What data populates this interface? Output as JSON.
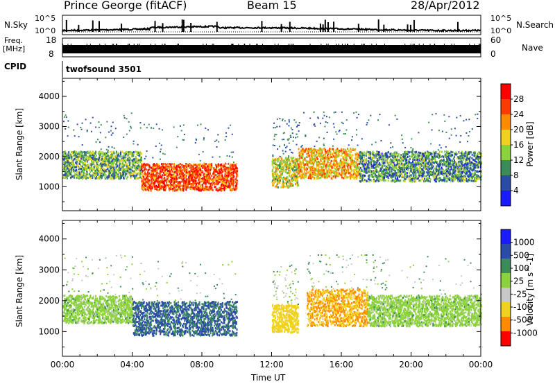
{
  "header": {
    "station": "Prince George (fitACF)",
    "beam": "Beam 15",
    "date": "28/Apr/2012"
  },
  "strip_labels": {
    "nsky": "N.Sky",
    "nsky_top": "10^5",
    "nsky_bottom": "10^0",
    "nsearch": "N.Search",
    "nsearch_top": "10^5",
    "nsearch_bottom": "10^0",
    "freq_line1": "Freq.",
    "freq_line2": "[MHz]",
    "freq_top": "18",
    "freq_bottom": "8",
    "nave": "Nave",
    "nave_top": "60",
    "nave_bottom": "0",
    "cpid": "CPID",
    "cpid_value": "twofsound 3501"
  },
  "chart_data": [
    {
      "type": "heatmap",
      "panel": "power",
      "ylabel": "Slant Range [km]",
      "ylim": [
        200,
        4600
      ],
      "yticks": [
        "1000",
        "2000",
        "3000",
        "4000"
      ],
      "colorbar_label": "Power [dB]",
      "colorbar_ticks": [
        "4",
        "8",
        "12",
        "16",
        "20",
        "24",
        "28"
      ],
      "colorbar_colors": [
        "#1a1aff",
        "#2a4ca8",
        "#3c8c5a",
        "#8cd23c",
        "#f0d21e",
        "#ff8c00",
        "#ff3c00",
        "#ff0000"
      ],
      "regions": [
        {
          "t0": 0.0,
          "t1": 4.5,
          "r0": 1300,
          "r1": 2200,
          "level": 12
        },
        {
          "t0": 4.5,
          "t1": 10.0,
          "r0": 900,
          "r1": 1800,
          "level": 26
        },
        {
          "t0": 12.0,
          "t1": 13.5,
          "r0": 1000,
          "r1": 2000,
          "level": 16
        },
        {
          "t0": 13.5,
          "t1": 17.0,
          "r0": 1300,
          "r1": 2300,
          "level": 20
        },
        {
          "t0": 17.0,
          "t1": 24.0,
          "r0": 1200,
          "r1": 2200,
          "level": 10
        }
      ]
    },
    {
      "type": "heatmap",
      "panel": "velocity",
      "xlabel": "Time UT",
      "xticks": [
        "00:00",
        "04:00",
        "08:00",
        "12:00",
        "16:00",
        "20:00",
        "00:00"
      ],
      "xlim_hours": [
        0,
        24
      ],
      "ylabel": "Slant Range [km]",
      "ylim": [
        200,
        4600
      ],
      "yticks": [
        "1000",
        "2000",
        "3000",
        "4000"
      ],
      "colorbar_label": "Velocity [m s^-1]",
      "colorbar_ticks": [
        "1000",
        "500",
        "100",
        "25",
        "-25",
        "-100",
        "-500",
        "-1000"
      ],
      "colorbar_colors": [
        "#1a1aff",
        "#2a4ca8",
        "#3c8c5a",
        "#8cd23c",
        "#c8c8c8",
        "#f0d21e",
        "#ff8c00",
        "#ff0000"
      ],
      "regions": [
        {
          "t0": 0.0,
          "t1": 4.0,
          "r0": 1300,
          "r1": 2200,
          "level": 0
        },
        {
          "t0": 4.0,
          "t1": 10.0,
          "r0": 900,
          "r1": 2000,
          "level": 120
        },
        {
          "t0": 12.0,
          "t1": 13.5,
          "r0": 1000,
          "r1": 1900,
          "level": -300
        },
        {
          "t0": 14.0,
          "t1": 17.5,
          "r0": 1200,
          "r1": 2400,
          "level": -500
        },
        {
          "t0": 17.5,
          "t1": 24.0,
          "r0": 1200,
          "r1": 2200,
          "level": 0
        }
      ]
    }
  ]
}
